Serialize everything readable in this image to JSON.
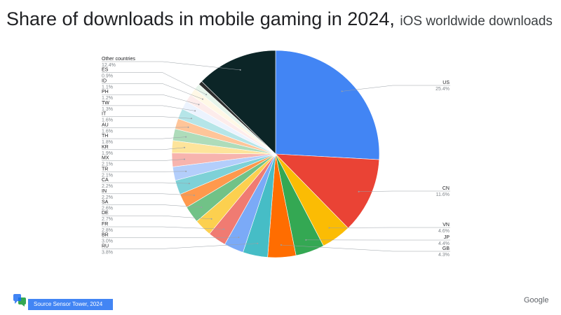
{
  "header": {
    "title": "Share of downloads in mobile gaming in 2024,",
    "subtitle": "iOS worldwide downloads"
  },
  "footer": {
    "source": "Source  Sensor Tower, 2024",
    "brand": "Google",
    "logo_icon": "chat-bubbles-logo-icon"
  },
  "chart_data": {
    "type": "pie",
    "title": "Share of downloads in mobile gaming in 2024, iOS worldwide downloads",
    "start": "12 o'clock, clockwise",
    "slices": [
      {
        "label": "US",
        "value": 25.4,
        "display": "25.4%",
        "color": "#4285f4"
      },
      {
        "label": "CN",
        "value": 11.6,
        "display": "11.6%",
        "color": "#ea4335"
      },
      {
        "label": "VN",
        "value": 4.6,
        "display": "4.6%",
        "color": "#fbbc04"
      },
      {
        "label": "JP",
        "value": 4.4,
        "display": "4.4%",
        "color": "#34a853"
      },
      {
        "label": "GB",
        "value": 4.3,
        "display": "4.3%",
        "color": "#ff6d01"
      },
      {
        "label": "RU",
        "value": 3.8,
        "display": "3.8%",
        "color": "#46bdc6"
      },
      {
        "label": "BR",
        "value": 3.0,
        "display": "3.0%",
        "color": "#7baaf7"
      },
      {
        "label": "FR",
        "value": 2.8,
        "display": "2.8%",
        "color": "#f07b72"
      },
      {
        "label": "DE",
        "value": 2.7,
        "display": "2.7%",
        "color": "#fcd04f"
      },
      {
        "label": "SA",
        "value": 2.6,
        "display": "2.6%",
        "color": "#71c287"
      },
      {
        "label": "IN",
        "value": 2.2,
        "display": "2.2%",
        "color": "#ff994d"
      },
      {
        "label": "CA",
        "value": 2.2,
        "display": "2.2%",
        "color": "#7ed1d7"
      },
      {
        "label": "TR",
        "value": 2.1,
        "display": "2.1%",
        "color": "#b3cefb"
      },
      {
        "label": "MX",
        "value": 2.1,
        "display": "2.1%",
        "color": "#f7b4ae"
      },
      {
        "label": "KR",
        "value": 1.9,
        "display": "1.9%",
        "color": "#fde49b"
      },
      {
        "label": "TH",
        "value": 1.8,
        "display": "1.8%",
        "color": "#aedcba"
      },
      {
        "label": "AU",
        "value": 1.6,
        "display": "1.6%",
        "color": "#ffc599"
      },
      {
        "label": "IT",
        "value": 1.6,
        "display": "1.6%",
        "color": "#b5e5e8"
      },
      {
        "label": "TW",
        "value": 1.3,
        "display": "1.3%",
        "color": "#ecf3fe"
      },
      {
        "label": "PH",
        "value": 1.2,
        "display": "1.2%",
        "color": "#fdeceb"
      },
      {
        "label": "ID",
        "value": 1.1,
        "display": "1.1%",
        "color": "#fff8e6"
      },
      {
        "label": "ES",
        "value": 0.9,
        "display": "0.9%",
        "color": "#e6f4ea"
      },
      {
        "label": "",
        "value": 0.6,
        "display": "",
        "color": "#2d2d2d"
      },
      {
        "label": "Other countries",
        "value": 12.4,
        "display": "12.4%",
        "color": "#0c2527"
      }
    ],
    "legend": "leader-line labels around the pie"
  }
}
